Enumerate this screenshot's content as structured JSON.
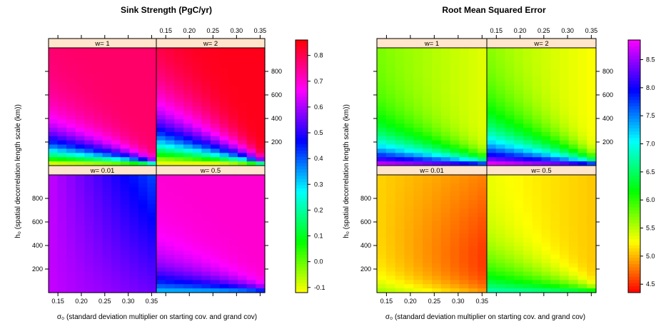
{
  "chart_data": [
    {
      "type": "heatmap",
      "title": "Sink Strength (PgC/yr)",
      "xlabel": "σ₀  (standard deviation multiplier on starting cov. and grand cov)",
      "ylabel": "h₀  (spatial decorrelation length scale (km))",
      "x_ticks": [
        "0.15",
        "0.20",
        "0.25",
        "0.30",
        "0.35"
      ],
      "y_ticks": [
        "200",
        "400",
        "600",
        "800"
      ],
      "xlim": [
        0.13,
        0.36
      ],
      "ylim": [
        0,
        1000
      ],
      "panels": [
        {
          "label": "w= 1",
          "position": "top-left"
        },
        {
          "label": "w= 2",
          "position": "top-right"
        },
        {
          "label": "w= 0.01",
          "position": "bottom-left"
        },
        {
          "label": "w= 0.5",
          "position": "bottom-right"
        }
      ],
      "colorbar": {
        "min": -0.12,
        "max": 0.86,
        "ticks": [
          "-0.1",
          "0.0",
          "0.1",
          "0.2",
          "0.3",
          "0.4",
          "0.5",
          "0.6",
          "0.7",
          "0.8"
        ],
        "tick_values": [
          -0.1,
          0.0,
          0.1,
          0.2,
          0.3,
          0.4,
          0.5,
          0.6,
          0.7,
          0.8
        ],
        "colors": [
          "#ffff00",
          "#00ff00",
          "#00ffff",
          "#0000ff",
          "#ff00ff",
          "#ff0000"
        ]
      }
    },
    {
      "type": "heatmap",
      "title": "Root Mean Squared Error",
      "xlabel": "σ₀  (standard deviation multiplier on starting cov. and grand cov)",
      "ylabel": "h₀  (spatial decorrelation length scale (km))",
      "x_ticks": [
        "0.15",
        "0.20",
        "0.25",
        "0.30",
        "0.35"
      ],
      "y_ticks": [
        "200",
        "400",
        "600",
        "800"
      ],
      "xlim": [
        0.13,
        0.36
      ],
      "ylim": [
        0,
        1000
      ],
      "panels": [
        {
          "label": "w= 1",
          "position": "top-left"
        },
        {
          "label": "w= 2",
          "position": "top-right"
        },
        {
          "label": "w= 0.01",
          "position": "bottom-left"
        },
        {
          "label": "w= 0.5",
          "position": "bottom-right"
        }
      ],
      "colorbar": {
        "min": 4.35,
        "max": 8.85,
        "ticks": [
          "4.5",
          "5.0",
          "5.5",
          "6.0",
          "6.5",
          "7.0",
          "7.5",
          "8.0",
          "8.5"
        ],
        "tick_values": [
          4.5,
          5.0,
          5.5,
          6.0,
          6.5,
          7.0,
          7.5,
          8.0,
          8.5
        ],
        "colors": [
          "#ff0000",
          "#ffff00",
          "#00ff00",
          "#00ffff",
          "#0000ff",
          "#ff00ff"
        ]
      }
    }
  ]
}
